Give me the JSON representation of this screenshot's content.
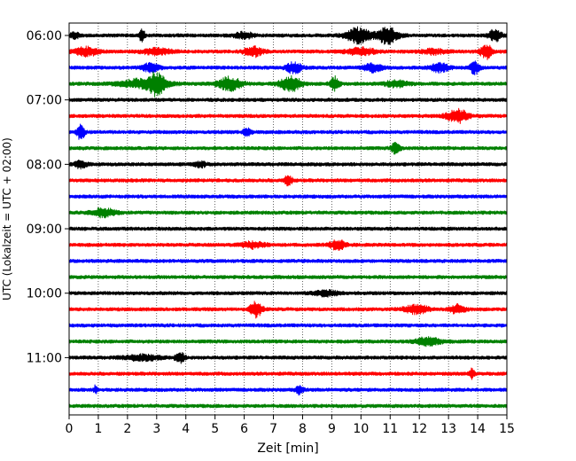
{
  "chart_data": {
    "type": "line",
    "title": "",
    "xlabel": "Zeit  [min]",
    "ylabel": "UTC (Lokalzeit = UTC + 02:00)",
    "xlim": [
      0,
      15
    ],
    "x_ticks": [
      "0",
      "1",
      "2",
      "3",
      "4",
      "5",
      "6",
      "7",
      "8",
      "9",
      "10",
      "11",
      "12",
      "13",
      "14",
      "15"
    ],
    "y_ticks": [
      "06:00",
      "07:00",
      "08:00",
      "09:00",
      "10:00",
      "11:00"
    ],
    "grid": "vertical dotted",
    "trace_colors": [
      "#000000",
      "#ff0000",
      "#0000ff",
      "#008000"
    ],
    "traces": [
      {
        "row": 0,
        "color": "#000000",
        "events": [
          [
            0.2,
            0.35,
            0.15
          ],
          [
            2.5,
            0.7,
            0.1
          ],
          [
            9.9,
            0.9,
            0.4
          ],
          [
            10.9,
            1.0,
            0.35
          ],
          [
            14.6,
            0.8,
            0.2
          ],
          [
            6.0,
            0.4,
            0.3
          ]
        ]
      },
      {
        "row": 1,
        "color": "#ff0000",
        "events": [
          [
            0.6,
            0.5,
            0.4
          ],
          [
            3.0,
            0.35,
            0.5
          ],
          [
            6.3,
            0.6,
            0.3
          ],
          [
            10.0,
            0.4,
            0.5
          ],
          [
            14.3,
            0.9,
            0.2
          ],
          [
            12.5,
            0.3,
            0.4
          ]
        ]
      },
      {
        "row": 2,
        "color": "#0000ff",
        "events": [
          [
            2.8,
            0.5,
            0.3
          ],
          [
            7.7,
            0.7,
            0.25
          ],
          [
            10.4,
            0.45,
            0.3
          ],
          [
            12.7,
            0.5,
            0.3
          ],
          [
            13.9,
            0.8,
            0.15
          ]
        ]
      },
      {
        "row": 3,
        "color": "#008000",
        "events": [
          [
            2.6,
            0.6,
            0.8
          ],
          [
            3.0,
            1.0,
            0.25
          ],
          [
            5.5,
            0.8,
            0.4
          ],
          [
            7.6,
            0.9,
            0.35
          ],
          [
            9.1,
            0.8,
            0.15
          ],
          [
            11.2,
            0.35,
            0.4
          ]
        ]
      },
      {
        "row": 4,
        "color": "#000000",
        "events": []
      },
      {
        "row": 5,
        "color": "#ff0000",
        "events": [
          [
            13.3,
            0.8,
            0.35
          ]
        ]
      },
      {
        "row": 6,
        "color": "#0000ff",
        "events": [
          [
            0.4,
            1.0,
            0.12
          ],
          [
            6.1,
            0.5,
            0.12
          ]
        ]
      },
      {
        "row": 7,
        "color": "#008000",
        "events": [
          [
            11.2,
            0.7,
            0.15
          ]
        ]
      },
      {
        "row": 8,
        "color": "#000000",
        "events": [
          [
            0.4,
            0.45,
            0.2
          ],
          [
            4.5,
            0.3,
            0.2
          ]
        ]
      },
      {
        "row": 9,
        "color": "#ff0000",
        "events": [
          [
            7.5,
            0.5,
            0.15
          ]
        ]
      },
      {
        "row": 10,
        "color": "#0000ff",
        "events": []
      },
      {
        "row": 11,
        "color": "#008000",
        "events": [
          [
            1.2,
            0.5,
            0.4
          ]
        ]
      },
      {
        "row": 12,
        "color": "#000000",
        "events": []
      },
      {
        "row": 13,
        "color": "#ff0000",
        "events": [
          [
            6.3,
            0.35,
            0.4
          ],
          [
            9.2,
            0.6,
            0.25
          ]
        ]
      },
      {
        "row": 14,
        "color": "#0000ff",
        "events": []
      },
      {
        "row": 15,
        "color": "#008000",
        "events": []
      },
      {
        "row": 16,
        "color": "#000000",
        "events": [
          [
            8.8,
            0.3,
            0.4
          ]
        ]
      },
      {
        "row": 17,
        "color": "#ff0000",
        "events": [
          [
            6.4,
            0.9,
            0.2
          ],
          [
            11.9,
            0.5,
            0.4
          ],
          [
            13.3,
            0.5,
            0.25
          ]
        ]
      },
      {
        "row": 18,
        "color": "#0000ff",
        "events": []
      },
      {
        "row": 19,
        "color": "#008000",
        "events": [
          [
            12.3,
            0.5,
            0.4
          ]
        ]
      },
      {
        "row": 20,
        "color": "#000000",
        "events": [
          [
            3.8,
            0.6,
            0.15
          ],
          [
            2.5,
            0.3,
            0.6
          ]
        ]
      },
      {
        "row": 21,
        "color": "#ff0000",
        "events": [
          [
            13.8,
            0.6,
            0.08
          ]
        ]
      },
      {
        "row": 22,
        "color": "#0000ff",
        "events": [
          [
            0.9,
            0.5,
            0.05
          ],
          [
            7.9,
            0.5,
            0.12
          ]
        ]
      },
      {
        "row": 23,
        "color": "#008000",
        "events": []
      }
    ]
  }
}
